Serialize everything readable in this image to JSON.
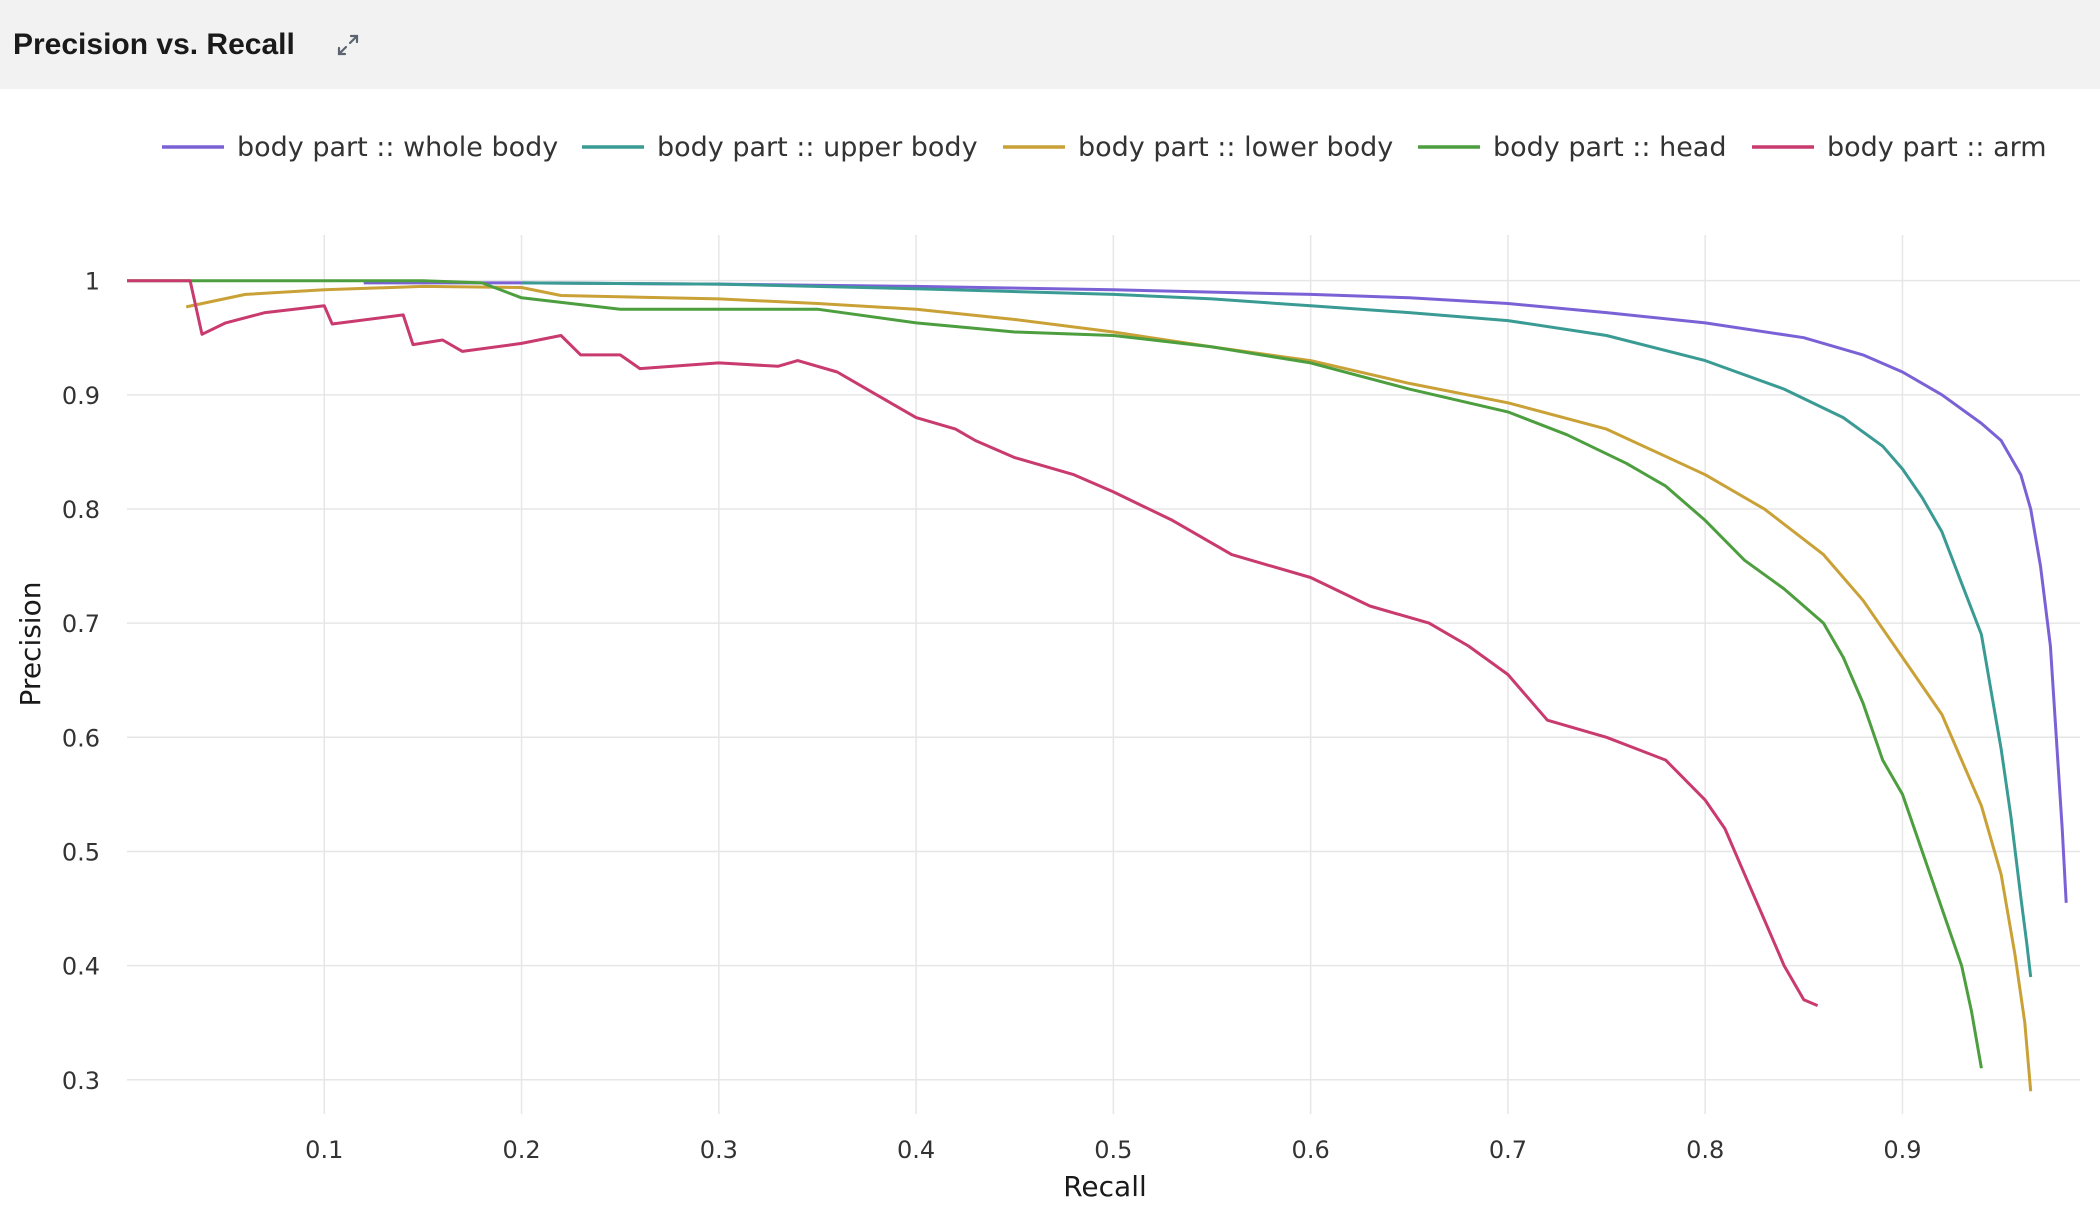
{
  "header": {
    "title": "Precision vs. Recall",
    "expand_icon": "expand-arrows-icon"
  },
  "chart_data": {
    "type": "line",
    "title": "",
    "xlabel": "Recall",
    "ylabel": "Precision",
    "xlim": [
      0.0,
      0.99
    ],
    "ylim": [
      0.27,
      1.04
    ],
    "xticks": [
      "0.1",
      "0.2",
      "0.3",
      "0.4",
      "0.5",
      "0.6",
      "0.7",
      "0.8",
      "0.9"
    ],
    "yticks": [
      "0.3",
      "0.4",
      "0.5",
      "0.6",
      "0.7",
      "0.8",
      "0.9",
      "1"
    ],
    "grid": true,
    "legend_position": "top",
    "series": [
      {
        "name": "body part :: whole body",
        "color": "#7b61d6",
        "points": [
          [
            0.12,
            0.998
          ],
          [
            0.2,
            0.998
          ],
          [
            0.3,
            0.997
          ],
          [
            0.4,
            0.995
          ],
          [
            0.5,
            0.992
          ],
          [
            0.55,
            0.99
          ],
          [
            0.6,
            0.988
          ],
          [
            0.65,
            0.985
          ],
          [
            0.7,
            0.98
          ],
          [
            0.75,
            0.972
          ],
          [
            0.8,
            0.963
          ],
          [
            0.85,
            0.95
          ],
          [
            0.88,
            0.935
          ],
          [
            0.9,
            0.92
          ],
          [
            0.92,
            0.9
          ],
          [
            0.94,
            0.875
          ],
          [
            0.95,
            0.86
          ],
          [
            0.96,
            0.83
          ],
          [
            0.965,
            0.8
          ],
          [
            0.97,
            0.75
          ],
          [
            0.975,
            0.68
          ],
          [
            0.978,
            0.6
          ],
          [
            0.981,
            0.52
          ],
          [
            0.983,
            0.455
          ]
        ]
      },
      {
        "name": "body part :: upper body",
        "color": "#3a9b94",
        "points": [
          [
            0.2,
            0.998
          ],
          [
            0.3,
            0.997
          ],
          [
            0.4,
            0.993
          ],
          [
            0.5,
            0.988
          ],
          [
            0.55,
            0.984
          ],
          [
            0.6,
            0.978
          ],
          [
            0.65,
            0.972
          ],
          [
            0.7,
            0.965
          ],
          [
            0.75,
            0.952
          ],
          [
            0.8,
            0.93
          ],
          [
            0.84,
            0.905
          ],
          [
            0.87,
            0.88
          ],
          [
            0.89,
            0.855
          ],
          [
            0.9,
            0.835
          ],
          [
            0.91,
            0.81
          ],
          [
            0.92,
            0.78
          ],
          [
            0.93,
            0.735
          ],
          [
            0.94,
            0.69
          ],
          [
            0.945,
            0.64
          ],
          [
            0.95,
            0.59
          ],
          [
            0.955,
            0.53
          ],
          [
            0.96,
            0.46
          ],
          [
            0.963,
            0.42
          ],
          [
            0.965,
            0.39
          ]
        ]
      },
      {
        "name": "body part :: lower body",
        "color": "#c9a136",
        "points": [
          [
            0.03,
            0.977
          ],
          [
            0.06,
            0.988
          ],
          [
            0.1,
            0.992
          ],
          [
            0.15,
            0.995
          ],
          [
            0.2,
            0.994
          ],
          [
            0.22,
            0.987
          ],
          [
            0.3,
            0.984
          ],
          [
            0.35,
            0.98
          ],
          [
            0.4,
            0.975
          ],
          [
            0.45,
            0.966
          ],
          [
            0.5,
            0.955
          ],
          [
            0.55,
            0.942
          ],
          [
            0.6,
            0.93
          ],
          [
            0.65,
            0.91
          ],
          [
            0.7,
            0.893
          ],
          [
            0.75,
            0.87
          ],
          [
            0.8,
            0.83
          ],
          [
            0.83,
            0.8
          ],
          [
            0.86,
            0.76
          ],
          [
            0.88,
            0.72
          ],
          [
            0.9,
            0.67
          ],
          [
            0.92,
            0.62
          ],
          [
            0.93,
            0.58
          ],
          [
            0.94,
            0.54
          ],
          [
            0.95,
            0.48
          ],
          [
            0.957,
            0.41
          ],
          [
            0.962,
            0.35
          ],
          [
            0.965,
            0.29
          ]
        ]
      },
      {
        "name": "body part :: head",
        "color": "#4c9e3e",
        "points": [
          [
            0.0,
            1.0
          ],
          [
            0.15,
            1.0
          ],
          [
            0.18,
            0.998
          ],
          [
            0.2,
            0.985
          ],
          [
            0.25,
            0.975
          ],
          [
            0.3,
            0.975
          ],
          [
            0.35,
            0.975
          ],
          [
            0.4,
            0.963
          ],
          [
            0.45,
            0.955
          ],
          [
            0.5,
            0.952
          ],
          [
            0.55,
            0.942
          ],
          [
            0.6,
            0.928
          ],
          [
            0.65,
            0.905
          ],
          [
            0.7,
            0.885
          ],
          [
            0.73,
            0.865
          ],
          [
            0.76,
            0.84
          ],
          [
            0.78,
            0.82
          ],
          [
            0.8,
            0.79
          ],
          [
            0.82,
            0.755
          ],
          [
            0.84,
            0.73
          ],
          [
            0.86,
            0.7
          ],
          [
            0.87,
            0.67
          ],
          [
            0.88,
            0.63
          ],
          [
            0.89,
            0.58
          ],
          [
            0.9,
            0.55
          ],
          [
            0.91,
            0.5
          ],
          [
            0.92,
            0.45
          ],
          [
            0.93,
            0.4
          ],
          [
            0.935,
            0.36
          ],
          [
            0.94,
            0.31
          ]
        ]
      },
      {
        "name": "body part :: arm",
        "color": "#c93a6e",
        "points": [
          [
            0.0,
            1.0
          ],
          [
            0.032,
            1.0
          ],
          [
            0.038,
            0.953
          ],
          [
            0.05,
            0.963
          ],
          [
            0.07,
            0.972
          ],
          [
            0.1,
            0.978
          ],
          [
            0.104,
            0.962
          ],
          [
            0.14,
            0.97
          ],
          [
            0.145,
            0.944
          ],
          [
            0.16,
            0.948
          ],
          [
            0.17,
            0.938
          ],
          [
            0.2,
            0.945
          ],
          [
            0.22,
            0.952
          ],
          [
            0.23,
            0.935
          ],
          [
            0.25,
            0.935
          ],
          [
            0.26,
            0.923
          ],
          [
            0.3,
            0.928
          ],
          [
            0.33,
            0.925
          ],
          [
            0.34,
            0.93
          ],
          [
            0.36,
            0.92
          ],
          [
            0.38,
            0.9
          ],
          [
            0.4,
            0.88
          ],
          [
            0.42,
            0.87
          ],
          [
            0.43,
            0.86
          ],
          [
            0.45,
            0.845
          ],
          [
            0.48,
            0.83
          ],
          [
            0.5,
            0.815
          ],
          [
            0.53,
            0.79
          ],
          [
            0.56,
            0.76
          ],
          [
            0.6,
            0.74
          ],
          [
            0.63,
            0.715
          ],
          [
            0.66,
            0.7
          ],
          [
            0.68,
            0.68
          ],
          [
            0.7,
            0.655
          ],
          [
            0.72,
            0.615
          ],
          [
            0.75,
            0.6
          ],
          [
            0.78,
            0.58
          ],
          [
            0.8,
            0.545
          ],
          [
            0.81,
            0.52
          ],
          [
            0.82,
            0.48
          ],
          [
            0.83,
            0.44
          ],
          [
            0.84,
            0.4
          ],
          [
            0.85,
            0.37
          ],
          [
            0.857,
            0.365
          ]
        ]
      }
    ]
  }
}
